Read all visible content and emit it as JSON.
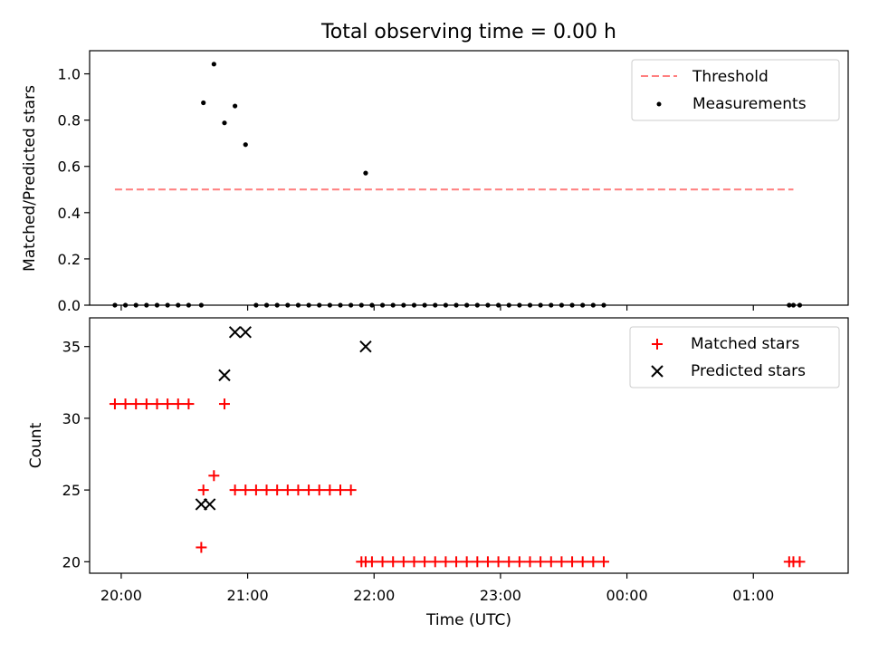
{
  "chart_data": [
    {
      "type": "scatter",
      "title": "Total observing time = 0.00 h",
      "ylabel": "Matched/Predicted stars",
      "xlim": [
        "19:45",
        "01:45"
      ],
      "ylim": [
        0,
        1.1
      ],
      "yticks": [
        0.0,
        0.2,
        0.4,
        0.6,
        0.8,
        1.0
      ],
      "ytick_labels": [
        "0.0",
        "0.2",
        "0.4",
        "0.6",
        "0.8",
        "1.0"
      ],
      "grid": false,
      "legend": "upper right",
      "series": [
        {
          "name": "Threshold",
          "style": "dashed-line",
          "color": "#ff7f7f",
          "x": [
            "19:57",
            "01:19"
          ],
          "y": [
            0.5,
            0.5
          ]
        },
        {
          "name": "Measurements",
          "style": "dot",
          "color": "#000000",
          "x": [
            "19:57",
            "20:02",
            "20:07",
            "20:12",
            "20:17",
            "20:22",
            "20:27",
            "20:32",
            "20:38",
            "20:39",
            "20:44",
            "20:49",
            "20:54",
            "20:59",
            "21:04",
            "21:09",
            "21:14",
            "21:19",
            "21:24",
            "21:29",
            "21:34",
            "21:39",
            "21:44",
            "21:49",
            "21:54",
            "21:56",
            "21:59",
            "22:04",
            "22:09",
            "22:14",
            "22:19",
            "22:24",
            "22:29",
            "22:34",
            "22:39",
            "22:44",
            "22:49",
            "22:54",
            "22:59",
            "23:04",
            "23:09",
            "23:14",
            "23:19",
            "23:24",
            "23:29",
            "23:34",
            "23:39",
            "23:44",
            "23:49",
            "01:17",
            "01:19",
            "01:22"
          ],
          "y": [
            0,
            0,
            0,
            0,
            0,
            0,
            0,
            0,
            0,
            0.875,
            1.042,
            0.788,
            0.861,
            0.694,
            0,
            0,
            0,
            0,
            0,
            0,
            0,
            0,
            0,
            0,
            0,
            0.571,
            0,
            0,
            0,
            0,
            0,
            0,
            0,
            0,
            0,
            0,
            0,
            0,
            0,
            0,
            0,
            0,
            0,
            0,
            0,
            0,
            0,
            0,
            0,
            0,
            0,
            0
          ]
        }
      ]
    },
    {
      "type": "scatter",
      "xlabel": "Time (UTC)",
      "ylabel": "Count",
      "xticks": [
        "20:00",
        "21:00",
        "22:00",
        "23:00",
        "00:00",
        "01:00"
      ],
      "xtick_labels": [
        "20:00",
        "21:00",
        "22:00",
        "23:00",
        "00:00",
        "01:00"
      ],
      "xlim": [
        "19:45",
        "01:45"
      ],
      "ylim": [
        19.2,
        37.0
      ],
      "yticks": [
        20,
        25,
        30,
        35
      ],
      "ytick_labels": [
        "20",
        "25",
        "30",
        "35"
      ],
      "grid": false,
      "legend": "upper right",
      "series": [
        {
          "name": "Matched stars",
          "marker": "plus",
          "color": "#ff0000",
          "x": [
            "19:57",
            "20:02",
            "20:07",
            "20:12",
            "20:17",
            "20:22",
            "20:27",
            "20:32",
            "20:38",
            "20:39",
            "20:44",
            "20:49",
            "20:54",
            "20:59",
            "21:04",
            "21:09",
            "21:14",
            "21:19",
            "21:24",
            "21:29",
            "21:34",
            "21:39",
            "21:44",
            "21:49",
            "21:54",
            "21:56",
            "21:59",
            "22:04",
            "22:09",
            "22:14",
            "22:19",
            "22:24",
            "22:29",
            "22:34",
            "22:39",
            "22:44",
            "22:49",
            "22:54",
            "22:59",
            "23:04",
            "23:09",
            "23:14",
            "23:19",
            "23:24",
            "23:29",
            "23:34",
            "23:39",
            "23:44",
            "23:49",
            "01:17",
            "01:19",
            "01:22"
          ],
          "y": [
            31,
            31,
            31,
            31,
            31,
            31,
            31,
            31,
            21,
            25,
            26,
            31,
            25,
            25,
            25,
            25,
            25,
            25,
            25,
            25,
            25,
            25,
            25,
            25,
            20,
            20,
            20,
            20,
            20,
            20,
            20,
            20,
            20,
            20,
            20,
            20,
            20,
            20,
            20,
            20,
            20,
            20,
            20,
            20,
            20,
            20,
            20,
            20,
            20,
            20,
            20,
            20
          ]
        },
        {
          "name": "Predicted stars",
          "marker": "x",
          "color": "#000000",
          "x": [
            "20:38",
            "20:42",
            "20:49",
            "20:54",
            "20:59",
            "21:56"
          ],
          "y": [
            24,
            24,
            33,
            36,
            36,
            35
          ]
        }
      ]
    }
  ]
}
